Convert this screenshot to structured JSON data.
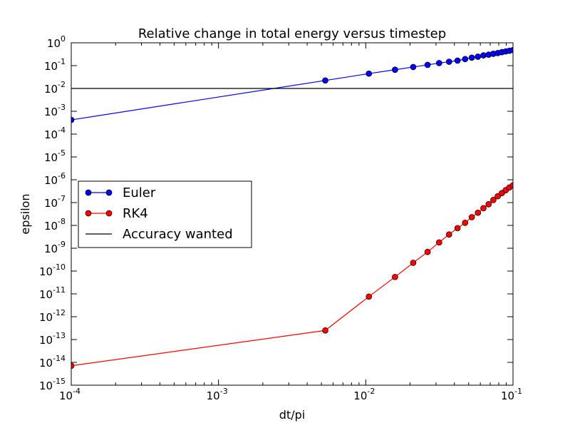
{
  "chart_data": {
    "type": "line",
    "title": "Relative change in total energy versus timestep",
    "xlabel": "dt/pi",
    "ylabel": "epsilon",
    "xscale": "log",
    "yscale": "log",
    "xlim": [
      0.0001,
      0.1
    ],
    "ylim": [
      1e-15,
      1
    ],
    "x_ticks": [
      {
        "base": "10",
        "exp": "-4",
        "value": 0.0001
      },
      {
        "base": "10",
        "exp": "-3",
        "value": 0.001
      },
      {
        "base": "10",
        "exp": "-2",
        "value": 0.01
      },
      {
        "base": "10",
        "exp": "-1",
        "value": 0.1
      }
    ],
    "y_ticks": [
      {
        "base": "10",
        "exp": "0",
        "value": 1
      },
      {
        "base": "10",
        "exp": "-1",
        "value": 0.1
      },
      {
        "base": "10",
        "exp": "-2",
        "value": 0.01
      },
      {
        "base": "10",
        "exp": "-3",
        "value": 0.001
      },
      {
        "base": "10",
        "exp": "-4",
        "value": 0.0001
      },
      {
        "base": "10",
        "exp": "-5",
        "value": 1e-05
      },
      {
        "base": "10",
        "exp": "-6",
        "value": 1e-06
      },
      {
        "base": "10",
        "exp": "-7",
        "value": 1e-07
      },
      {
        "base": "10",
        "exp": "-8",
        "value": 1e-08
      },
      {
        "base": "10",
        "exp": "-9",
        "value": 1e-09
      },
      {
        "base": "10",
        "exp": "-10",
        "value": 1e-10
      },
      {
        "base": "10",
        "exp": "-11",
        "value": 1e-11
      },
      {
        "base": "10",
        "exp": "-12",
        "value": 1e-12
      },
      {
        "base": "10",
        "exp": "-13",
        "value": 1e-13
      },
      {
        "base": "10",
        "exp": "-14",
        "value": 1e-14
      },
      {
        "base": "10",
        "exp": "-15",
        "value": 1e-15
      }
    ],
    "grid": false,
    "legend_position": "center-left",
    "series": [
      {
        "name": "Euler",
        "color": "#0000ff",
        "marker": "circle",
        "x": [
          0.0001,
          0.00531,
          0.0105,
          0.0158,
          0.021,
          0.0263,
          0.0315,
          0.0368,
          0.042,
          0.0473,
          0.0525,
          0.0578,
          0.063,
          0.0683,
          0.0735,
          0.0788,
          0.084,
          0.0893,
          0.0945,
          0.1
        ],
        "y": [
          0.00042,
          0.0224,
          0.0447,
          0.0661,
          0.0871,
          0.108,
          0.129,
          0.148,
          0.166,
          0.193,
          0.224,
          0.246,
          0.282,
          0.302,
          0.331,
          0.355,
          0.389,
          0.42,
          0.447,
          0.48
        ]
      },
      {
        "name": "RK4",
        "color": "#ff0000",
        "marker": "circle",
        "x": [
          0.0001,
          0.00531,
          0.0105,
          0.0158,
          0.021,
          0.0263,
          0.0315,
          0.0368,
          0.042,
          0.0473,
          0.0525,
          0.0578,
          0.063,
          0.0683,
          0.0735,
          0.0788,
          0.084,
          0.0893,
          0.0945,
          0.1
        ],
        "y": [
          7.1e-15,
          2.5e-13,
          7.6e-12,
          5.5e-11,
          2.3e-10,
          6.9e-10,
          1.8e-09,
          4e-09,
          7.6e-09,
          1.3e-08,
          2.3e-08,
          3.6e-08,
          5.7e-08,
          8.5e-08,
          1.3e-07,
          1.9e-07,
          2.6e-07,
          3.5e-07,
          4.6e-07,
          5.7e-07
        ]
      },
      {
        "name": "Accuracy wanted",
        "color": "#000000",
        "marker": "none",
        "x": [
          0.0001,
          0.1
        ],
        "y": [
          0.01,
          0.01
        ]
      }
    ]
  }
}
